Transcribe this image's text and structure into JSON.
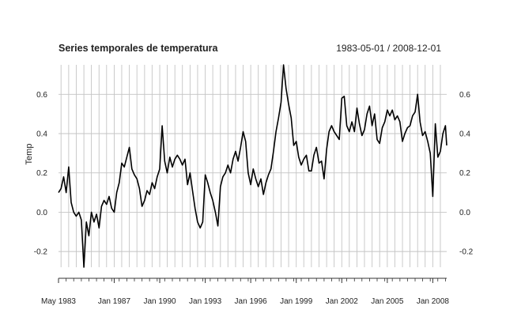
{
  "chart_data": {
    "type": "line",
    "title": "Series temporales de temperatura",
    "subtitle": "1983-05-01 / 2008-12-01",
    "xlabel": "",
    "ylabel": "Temp",
    "xlim": [
      "1983-05-01",
      "2008-12-01"
    ],
    "ylim": [
      -0.28,
      0.75
    ],
    "y_ticks": [
      -0.2,
      0.0,
      0.2,
      0.4,
      0.6
    ],
    "y_tick_labels": [
      "-0.2",
      "0.0",
      "0.2",
      "0.4",
      "0.6"
    ],
    "x_ticks": [
      {
        "date": "1983-05-01",
        "label": "May 1983"
      },
      {
        "date": "1987-01-01",
        "label": "Jan 1987"
      },
      {
        "date": "1990-01-01",
        "label": "Jan 1990"
      },
      {
        "date": "1993-01-01",
        "label": "Jan 1993"
      },
      {
        "date": "1996-01-01",
        "label": "Jan 1996"
      },
      {
        "date": "1999-01-01",
        "label": "Jan 1999"
      },
      {
        "date": "2002-01-01",
        "label": "Jan 2002"
      },
      {
        "date": "2005-01-01",
        "label": "Jan 2005"
      },
      {
        "date": "2008-01-01",
        "label": "Jan 2008"
      }
    ],
    "grid": true,
    "series": [
      {
        "color": "#000000",
        "points": [
          [
            "1983-05-01",
            0.1
          ],
          [
            "1983-07-01",
            0.12
          ],
          [
            "1983-09-01",
            0.18
          ],
          [
            "1983-11-01",
            0.1
          ],
          [
            "1984-01-01",
            0.23
          ],
          [
            "1984-03-01",
            0.05
          ],
          [
            "1984-05-01",
            0.0
          ],
          [
            "1984-07-01",
            -0.02
          ],
          [
            "1984-09-01",
            0.0
          ],
          [
            "1984-11-01",
            -0.04
          ],
          [
            "1985-01-01",
            -0.28
          ],
          [
            "1985-03-01",
            -0.05
          ],
          [
            "1985-05-01",
            -0.12
          ],
          [
            "1985-07-01",
            0.0
          ],
          [
            "1985-09-01",
            -0.05
          ],
          [
            "1985-11-01",
            -0.01
          ],
          [
            "1986-01-01",
            -0.08
          ],
          [
            "1986-03-01",
            0.03
          ],
          [
            "1986-05-01",
            0.06
          ],
          [
            "1986-07-01",
            0.04
          ],
          [
            "1986-09-01",
            0.08
          ],
          [
            "1986-11-01",
            0.02
          ],
          [
            "1987-01-01",
            0.0
          ],
          [
            "1987-03-01",
            0.1
          ],
          [
            "1987-05-01",
            0.15
          ],
          [
            "1987-07-01",
            0.25
          ],
          [
            "1987-09-01",
            0.23
          ],
          [
            "1987-11-01",
            0.28
          ],
          [
            "1988-01-01",
            0.33
          ],
          [
            "1988-03-01",
            0.22
          ],
          [
            "1988-05-01",
            0.19
          ],
          [
            "1988-07-01",
            0.17
          ],
          [
            "1988-09-01",
            0.12
          ],
          [
            "1988-11-01",
            0.03
          ],
          [
            "1989-01-01",
            0.06
          ],
          [
            "1989-03-01",
            0.11
          ],
          [
            "1989-05-01",
            0.09
          ],
          [
            "1989-07-01",
            0.15
          ],
          [
            "1989-09-01",
            0.12
          ],
          [
            "1989-11-01",
            0.18
          ],
          [
            "1990-01-01",
            0.22
          ],
          [
            "1990-03-01",
            0.44
          ],
          [
            "1990-05-01",
            0.26
          ],
          [
            "1990-07-01",
            0.2
          ],
          [
            "1990-09-01",
            0.28
          ],
          [
            "1990-11-01",
            0.23
          ],
          [
            "1991-01-01",
            0.27
          ],
          [
            "1991-03-01",
            0.29
          ],
          [
            "1991-05-01",
            0.27
          ],
          [
            "1991-07-01",
            0.24
          ],
          [
            "1991-09-01",
            0.27
          ],
          [
            "1991-11-01",
            0.14
          ],
          [
            "1992-01-01",
            0.2
          ],
          [
            "1992-03-01",
            0.11
          ],
          [
            "1992-05-01",
            0.02
          ],
          [
            "1992-07-01",
            -0.05
          ],
          [
            "1992-09-01",
            -0.08
          ],
          [
            "1992-11-01",
            -0.05
          ],
          [
            "1993-01-01",
            0.19
          ],
          [
            "1993-03-01",
            0.15
          ],
          [
            "1993-05-01",
            0.1
          ],
          [
            "1993-07-01",
            0.06
          ],
          [
            "1993-09-01",
            0.0
          ],
          [
            "1993-11-01",
            -0.07
          ],
          [
            "1994-01-01",
            0.13
          ],
          [
            "1994-03-01",
            0.18
          ],
          [
            "1994-05-01",
            0.2
          ],
          [
            "1994-07-01",
            0.24
          ],
          [
            "1994-09-01",
            0.2
          ],
          [
            "1994-11-01",
            0.27
          ],
          [
            "1995-01-01",
            0.31
          ],
          [
            "1995-03-01",
            0.26
          ],
          [
            "1995-05-01",
            0.33
          ],
          [
            "1995-07-01",
            0.41
          ],
          [
            "1995-09-01",
            0.36
          ],
          [
            "1995-11-01",
            0.2
          ],
          [
            "1996-01-01",
            0.14
          ],
          [
            "1996-03-01",
            0.22
          ],
          [
            "1996-05-01",
            0.17
          ],
          [
            "1996-07-01",
            0.13
          ],
          [
            "1996-09-01",
            0.17
          ],
          [
            "1996-11-01",
            0.09
          ],
          [
            "1997-01-01",
            0.15
          ],
          [
            "1997-03-01",
            0.19
          ],
          [
            "1997-05-01",
            0.22
          ],
          [
            "1997-07-01",
            0.31
          ],
          [
            "1997-09-01",
            0.41
          ],
          [
            "1997-11-01",
            0.48
          ],
          [
            "1998-01-01",
            0.56
          ],
          [
            "1998-03-01",
            0.75
          ],
          [
            "1998-05-01",
            0.63
          ],
          [
            "1998-07-01",
            0.55
          ],
          [
            "1998-09-01",
            0.48
          ],
          [
            "1998-11-01",
            0.34
          ],
          [
            "1999-01-01",
            0.36
          ],
          [
            "1999-03-01",
            0.28
          ],
          [
            "1999-05-01",
            0.24
          ],
          [
            "1999-07-01",
            0.27
          ],
          [
            "1999-09-01",
            0.29
          ],
          [
            "1999-11-01",
            0.21
          ],
          [
            "2000-01-01",
            0.21
          ],
          [
            "2000-03-01",
            0.29
          ],
          [
            "2000-05-01",
            0.33
          ],
          [
            "2000-07-01",
            0.25
          ],
          [
            "2000-09-01",
            0.26
          ],
          [
            "2000-11-01",
            0.17
          ],
          [
            "2001-01-01",
            0.32
          ],
          [
            "2001-03-01",
            0.41
          ],
          [
            "2001-05-01",
            0.44
          ],
          [
            "2001-07-01",
            0.41
          ],
          [
            "2001-09-01",
            0.39
          ],
          [
            "2001-11-01",
            0.37
          ],
          [
            "2002-01-01",
            0.58
          ],
          [
            "2002-03-01",
            0.59
          ],
          [
            "2002-05-01",
            0.44
          ],
          [
            "2002-07-01",
            0.41
          ],
          [
            "2002-09-01",
            0.46
          ],
          [
            "2002-11-01",
            0.41
          ],
          [
            "2003-01-01",
            0.53
          ],
          [
            "2003-03-01",
            0.45
          ],
          [
            "2003-05-01",
            0.39
          ],
          [
            "2003-07-01",
            0.42
          ],
          [
            "2003-09-01",
            0.5
          ],
          [
            "2003-11-01",
            0.54
          ],
          [
            "2004-01-01",
            0.44
          ],
          [
            "2004-03-01",
            0.5
          ],
          [
            "2004-05-01",
            0.37
          ],
          [
            "2004-07-01",
            0.35
          ],
          [
            "2004-09-01",
            0.43
          ],
          [
            "2004-11-01",
            0.46
          ],
          [
            "2005-01-01",
            0.52
          ],
          [
            "2005-03-01",
            0.49
          ],
          [
            "2005-05-01",
            0.52
          ],
          [
            "2005-07-01",
            0.47
          ],
          [
            "2005-09-01",
            0.49
          ],
          [
            "2005-11-01",
            0.46
          ],
          [
            "2006-01-01",
            0.36
          ],
          [
            "2006-03-01",
            0.4
          ],
          [
            "2006-05-01",
            0.43
          ],
          [
            "2006-07-01",
            0.44
          ],
          [
            "2006-09-01",
            0.49
          ],
          [
            "2006-11-01",
            0.51
          ],
          [
            "2007-01-01",
            0.6
          ],
          [
            "2007-03-01",
            0.46
          ],
          [
            "2007-05-01",
            0.39
          ],
          [
            "2007-07-01",
            0.41
          ],
          [
            "2007-09-01",
            0.36
          ],
          [
            "2007-11-01",
            0.3
          ],
          [
            "2008-01-01",
            0.08
          ],
          [
            "2008-03-01",
            0.45
          ],
          [
            "2008-05-01",
            0.28
          ],
          [
            "2008-07-01",
            0.31
          ],
          [
            "2008-09-01",
            0.4
          ],
          [
            "2008-11-01",
            0.44
          ],
          [
            "2008-12-01",
            0.34
          ]
        ]
      }
    ]
  }
}
